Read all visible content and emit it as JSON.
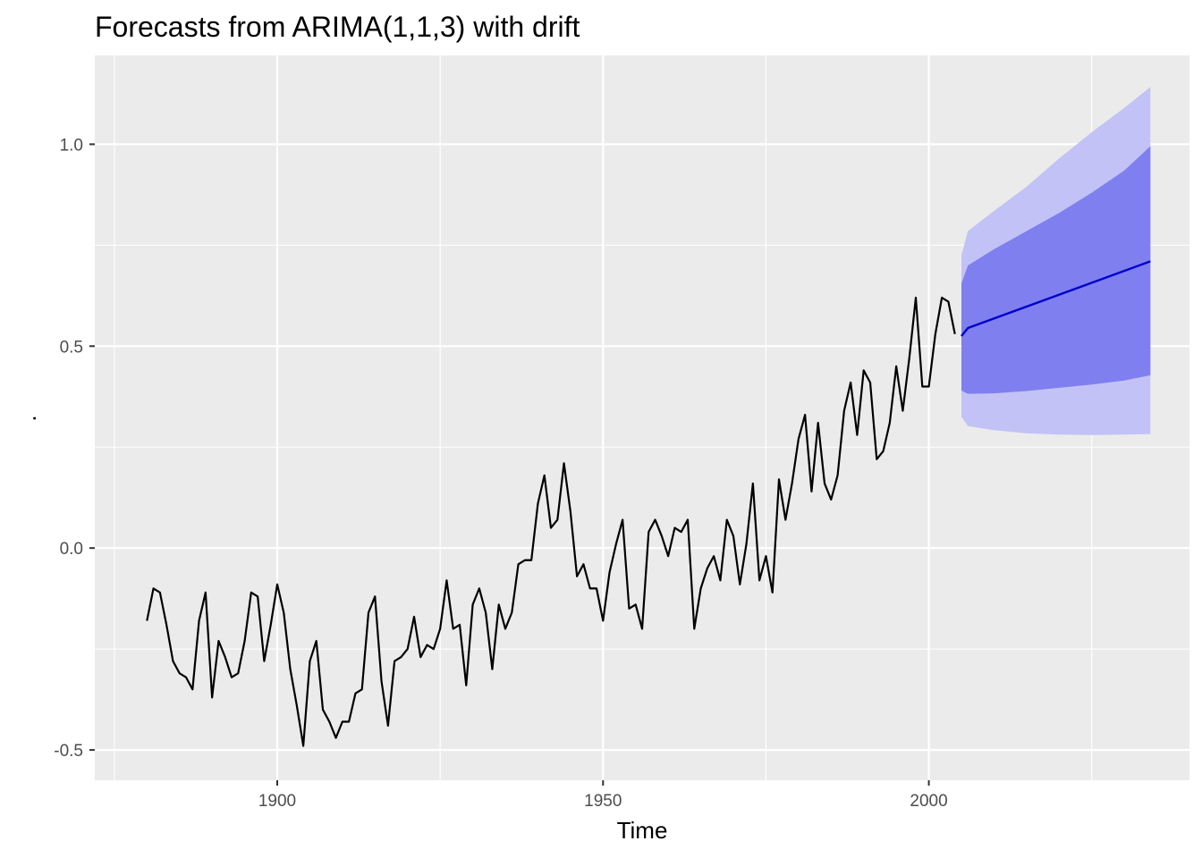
{
  "chart_data": {
    "type": "line",
    "title": "Forecasts from ARIMA(1,1,3) with drift",
    "xlabel": "Time",
    "ylabel": ".",
    "xlim": [
      1872,
      2040
    ],
    "ylim": [
      -0.575,
      1.22
    ],
    "x_ticks": [
      1900,
      1950,
      2000
    ],
    "x_tick_labels": [
      "1900",
      "1950",
      "2000"
    ],
    "x_minor_ticks": [
      1875,
      1925,
      1975,
      2025
    ],
    "y_ticks": [
      -0.5,
      0.0,
      0.5,
      1.0
    ],
    "y_tick_labels": [
      "-0.5",
      "0.0",
      "0.5",
      "1.0"
    ],
    "y_minor_ticks": [
      -0.25,
      0.25,
      0.75
    ],
    "grid": true,
    "colors": {
      "panel_background": "#ebebeb",
      "grid": "#ffffff",
      "history_line": "#000000",
      "forecast_line": "#0000cc",
      "band_80": "#7f7fef",
      "band_95": "#c2c2f6"
    },
    "series": [
      {
        "kind": "history",
        "x": [
          1880,
          1881,
          1882,
          1883,
          1884,
          1885,
          1886,
          1887,
          1888,
          1889,
          1890,
          1891,
          1892,
          1893,
          1894,
          1895,
          1896,
          1897,
          1898,
          1899,
          1900,
          1901,
          1902,
          1903,
          1904,
          1905,
          1906,
          1907,
          1908,
          1909,
          1910,
          1911,
          1912,
          1913,
          1914,
          1915,
          1916,
          1917,
          1918,
          1919,
          1920,
          1921,
          1922,
          1923,
          1924,
          1925,
          1926,
          1927,
          1928,
          1929,
          1930,
          1931,
          1932,
          1933,
          1934,
          1935,
          1936,
          1937,
          1938,
          1939,
          1940,
          1941,
          1942,
          1943,
          1944,
          1945,
          1946,
          1947,
          1948,
          1949,
          1950,
          1951,
          1952,
          1953,
          1954,
          1955,
          1956,
          1957,
          1958,
          1959,
          1960,
          1961,
          1962,
          1963,
          1964,
          1965,
          1966,
          1967,
          1968,
          1969,
          1970,
          1971,
          1972,
          1973,
          1974,
          1975,
          1976,
          1977,
          1978,
          1979,
          1980,
          1981,
          1982,
          1983,
          1984,
          1985,
          1986,
          1987,
          1988,
          1989,
          1990,
          1991,
          1992,
          1993,
          1994,
          1995,
          1996,
          1997,
          1998,
          1999,
          2000,
          2001,
          2002,
          2003,
          2004
        ],
        "values": [
          -0.18,
          -0.1,
          -0.11,
          -0.19,
          -0.28,
          -0.31,
          -0.32,
          -0.35,
          -0.18,
          -0.11,
          -0.37,
          -0.23,
          -0.27,
          -0.32,
          -0.31,
          -0.23,
          -0.11,
          -0.12,
          -0.28,
          -0.19,
          -0.09,
          -0.16,
          -0.3,
          -0.39,
          -0.49,
          -0.28,
          -0.23,
          -0.4,
          -0.43,
          -0.47,
          -0.43,
          -0.43,
          -0.36,
          -0.35,
          -0.16,
          -0.12,
          -0.33,
          -0.44,
          -0.28,
          -0.27,
          -0.25,
          -0.17,
          -0.27,
          -0.24,
          -0.25,
          -0.2,
          -0.08,
          -0.2,
          -0.19,
          -0.34,
          -0.14,
          -0.1,
          -0.16,
          -0.3,
          -0.14,
          -0.2,
          -0.16,
          -0.04,
          -0.03,
          -0.03,
          0.11,
          0.18,
          0.05,
          0.07,
          0.21,
          0.09,
          -0.07,
          -0.04,
          -0.1,
          -0.1,
          -0.18,
          -0.06,
          0.01,
          0.07,
          -0.15,
          -0.14,
          -0.2,
          0.04,
          0.07,
          0.03,
          -0.02,
          0.05,
          0.04,
          0.07,
          -0.2,
          -0.1,
          -0.05,
          -0.02,
          -0.08,
          0.07,
          0.03,
          -0.09,
          0.01,
          0.16,
          -0.08,
          -0.02,
          -0.11,
          0.17,
          0.07,
          0.16,
          0.27,
          0.33,
          0.14,
          0.31,
          0.16,
          0.12,
          0.18,
          0.34,
          0.41,
          0.28,
          0.44,
          0.41,
          0.22,
          0.24,
          0.31,
          0.45,
          0.34,
          0.47,
          0.62,
          0.4,
          0.4,
          0.53,
          0.62,
          0.61,
          0.53
        ]
      },
      {
        "kind": "forecast",
        "x": [
          2005,
          2006,
          2034
        ],
        "values": [
          0.525,
          0.545,
          0.71
        ]
      }
    ],
    "forecast_bands": {
      "x": [
        2005,
        2006,
        2010,
        2015,
        2020,
        2025,
        2030,
        2034
      ],
      "lo95": [
        0.325,
        0.302,
        0.292,
        0.284,
        0.281,
        0.28,
        0.281,
        0.282
      ],
      "lo80": [
        0.39,
        0.382,
        0.383,
        0.389,
        0.397,
        0.405,
        0.415,
        0.428
      ],
      "hi80": [
        0.655,
        0.7,
        0.74,
        0.785,
        0.83,
        0.88,
        0.935,
        0.995
      ],
      "hi95": [
        0.725,
        0.785,
        0.835,
        0.895,
        0.965,
        1.03,
        1.09,
        1.142
      ]
    }
  }
}
